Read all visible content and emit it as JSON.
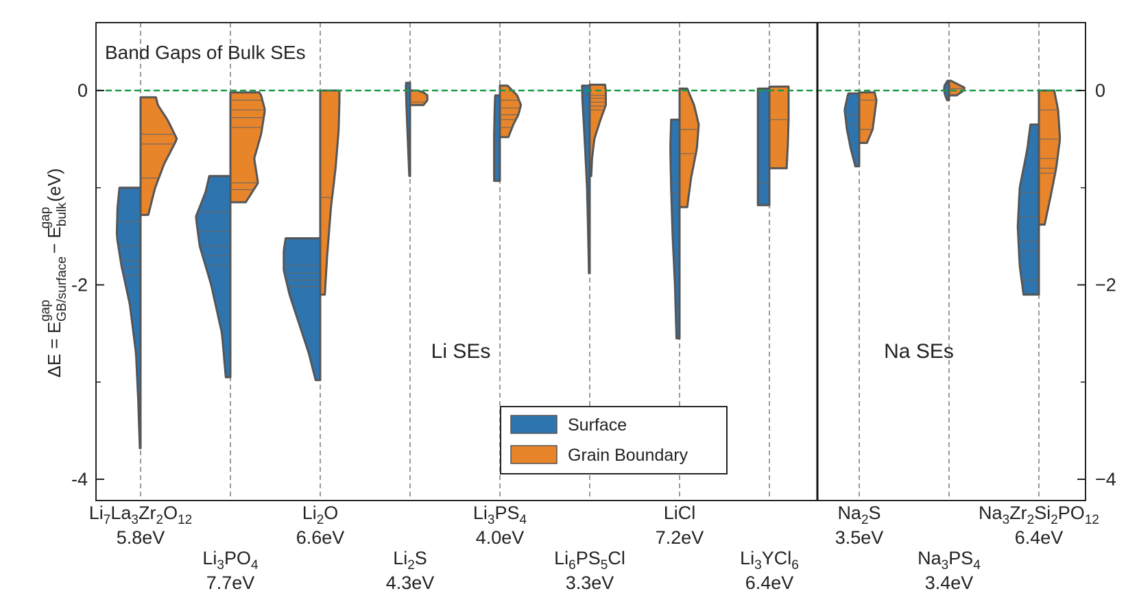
{
  "chart_data": {
    "type": "violin",
    "title": "Band Gaps of Bulk SEs",
    "ylabel": "ΔE = E^gap_GB/surface − E^gap_bulk (eV)",
    "ylabel_parts": {
      "prefix": "ΔE = E",
      "sub1": "GB/surface",
      "sup1": "gap",
      "mid": " − E",
      "sub2": "bulk",
      "sup2": "gap",
      "suffix": "  (eV)"
    },
    "ylim": [
      -4.2,
      0.7
    ],
    "yticks": [
      -4,
      -2,
      0
    ],
    "yticklabels": [
      "−4",
      "−2",
      "0"
    ],
    "yticklabels_left": [
      "-4",
      "-2",
      "0"
    ],
    "reference_line": 0,
    "regions": [
      {
        "label": "Li SEs",
        "from": 0,
        "to": 7
      },
      {
        "label": "Na SEs",
        "from": 8,
        "to": 10
      }
    ],
    "series_colors": {
      "surface": "#2e75b0",
      "grain_boundary": "#e8852a"
    },
    "legend": {
      "placement": "lower-center",
      "entries": [
        "Surface",
        "Grain Boundary"
      ]
    },
    "materials": [
      {
        "formula": [
          [
            "Li",
            ""
          ],
          [
            "7",
            "sub"
          ],
          [
            "La",
            ""
          ],
          [
            "3",
            "sub"
          ],
          [
            "Zr",
            ""
          ],
          [
            "2",
            "sub"
          ],
          [
            "O",
            ""
          ],
          [
            "12",
            "sub"
          ]
        ],
        "bandgap": "5.8eV",
        "surface": {
          "min": -3.68,
          "max": -1.0,
          "density": [
            [
              -3.68,
              0.02
            ],
            [
              -3.2,
              0.06
            ],
            [
              -2.7,
              0.12
            ],
            [
              -2.2,
              0.28
            ],
            [
              -1.8,
              0.5
            ],
            [
              -1.5,
              0.62
            ],
            [
              -1.2,
              0.6
            ],
            [
              -1.0,
              0.55
            ]
          ],
          "lines": [
            -1.35,
            -1.6,
            -1.75,
            -1.82,
            -1.9
          ]
        },
        "gb": {
          "min": -1.28,
          "max": -0.07,
          "density": [
            [
              -1.28,
              0.2
            ],
            [
              -1.0,
              0.38
            ],
            [
              -0.75,
              0.62
            ],
            [
              -0.5,
              0.95
            ],
            [
              -0.3,
              0.7
            ],
            [
              -0.15,
              0.45
            ],
            [
              -0.07,
              0.4
            ]
          ],
          "lines": [
            -0.45,
            -0.55,
            -0.9
          ]
        }
      },
      {
        "formula": [
          [
            "Li",
            ""
          ],
          [
            "3",
            "sub"
          ],
          [
            "PO",
            ""
          ],
          [
            "4",
            "sub"
          ]
        ],
        "bandgap": "7.7eV",
        "surface": {
          "min": -2.95,
          "max": -0.88,
          "density": [
            [
              -2.95,
              0.12
            ],
            [
              -2.5,
              0.22
            ],
            [
              -2.0,
              0.5
            ],
            [
              -1.6,
              0.8
            ],
            [
              -1.3,
              0.9
            ],
            [
              -1.05,
              0.65
            ],
            [
              -0.88,
              0.55
            ]
          ],
          "lines": [
            -1.25,
            -1.45,
            -1.6,
            -1.7,
            -1.8
          ]
        },
        "gb": {
          "min": -1.15,
          "max": -0.02,
          "density": [
            [
              -1.15,
              0.4
            ],
            [
              -0.95,
              0.72
            ],
            [
              -0.7,
              0.62
            ],
            [
              -0.45,
              0.8
            ],
            [
              -0.2,
              0.9
            ],
            [
              -0.05,
              0.8
            ],
            [
              -0.02,
              0.75
            ]
          ],
          "lines": [
            -0.1,
            -0.2,
            -0.28,
            -0.38,
            -0.95,
            -1.02
          ]
        }
      },
      {
        "formula": [
          [
            "Li",
            ""
          ],
          [
            "2",
            "sub"
          ],
          [
            "O",
            ""
          ]
        ],
        "bandgap": "6.6eV",
        "surface": {
          "min": -2.98,
          "max": -1.52,
          "density": [
            [
              -2.98,
              0.12
            ],
            [
              -2.7,
              0.3
            ],
            [
              -2.4,
              0.55
            ],
            [
              -2.1,
              0.8
            ],
            [
              -1.85,
              0.95
            ],
            [
              -1.65,
              0.95
            ],
            [
              -1.52,
              0.9
            ]
          ],
          "lines": [
            -1.8,
            -1.88,
            -1.95,
            -2.02
          ]
        },
        "gb": {
          "min": -2.1,
          "max": 0.0,
          "density": [
            [
              -2.1,
              0.12
            ],
            [
              -1.7,
              0.18
            ],
            [
              -1.2,
              0.28
            ],
            [
              -0.8,
              0.4
            ],
            [
              -0.4,
              0.48
            ],
            [
              -0.1,
              0.5
            ],
            [
              0.0,
              0.5
            ]
          ],
          "lines": [
            -1.1
          ]
        }
      },
      {
        "formula": [
          [
            "Li",
            ""
          ],
          [
            "2",
            "sub"
          ],
          [
            "S",
            ""
          ]
        ],
        "bandgap": "4.3eV",
        "surface": {
          "min": -0.88,
          "max": 0.08,
          "density": [
            [
              -0.88,
              0.02
            ],
            [
              -0.6,
              0.05
            ],
            [
              -0.3,
              0.08
            ],
            [
              -0.1,
              0.1
            ],
            [
              0.05,
              0.11
            ],
            [
              0.08,
              0.1
            ]
          ],
          "lines": []
        },
        "gb": {
          "min": -0.15,
          "max": -0.0,
          "density": [
            [
              -0.15,
              0.35
            ],
            [
              -0.1,
              0.45
            ],
            [
              -0.05,
              0.45
            ],
            [
              -0.02,
              0.35
            ],
            [
              -0.0,
              0.2
            ]
          ],
          "lines": [
            -0.12
          ]
        }
      },
      {
        "formula": [
          [
            "Li",
            ""
          ],
          [
            "3",
            "sub"
          ],
          [
            "PS",
            ""
          ],
          [
            "4",
            "sub"
          ]
        ],
        "bandgap": "4.0eV",
        "surface": {
          "min": -0.93,
          "max": -0.05,
          "density": [
            [
              -0.93,
              0.15
            ],
            [
              -0.7,
              0.15
            ],
            [
              -0.45,
              0.15
            ],
            [
              -0.25,
              0.14
            ],
            [
              -0.1,
              0.13
            ],
            [
              -0.05,
              0.12
            ]
          ],
          "lines": [
            -0.55,
            -0.78
          ]
        },
        "gb": {
          "min": -0.48,
          "max": 0.05,
          "density": [
            [
              -0.48,
              0.22
            ],
            [
              -0.35,
              0.35
            ],
            [
              -0.25,
              0.48
            ],
            [
              -0.15,
              0.55
            ],
            [
              -0.05,
              0.45
            ],
            [
              0.05,
              0.2
            ]
          ],
          "lines": [
            -0.1,
            -0.18,
            -0.25,
            -0.3,
            -0.38
          ]
        }
      },
      {
        "formula": [
          [
            "Li",
            ""
          ],
          [
            "6",
            "sub"
          ],
          [
            "PS",
            ""
          ],
          [
            "5",
            "sub"
          ],
          [
            "Cl",
            ""
          ]
        ],
        "bandgap": "3.3eV",
        "surface": {
          "min": -1.88,
          "max": 0.05,
          "density": [
            [
              -1.88,
              0.02
            ],
            [
              -1.5,
              0.04
            ],
            [
              -1.0,
              0.07
            ],
            [
              -0.6,
              0.12
            ],
            [
              -0.3,
              0.16
            ],
            [
              -0.1,
              0.19
            ],
            [
              0.05,
              0.2
            ]
          ],
          "lines": [
            -0.05,
            -0.18
          ]
        },
        "gb": {
          "min": -0.88,
          "max": 0.06,
          "density": [
            [
              -0.88,
              0.04
            ],
            [
              -0.7,
              0.06
            ],
            [
              -0.5,
              0.12
            ],
            [
              -0.3,
              0.28
            ],
            [
              -0.15,
              0.42
            ],
            [
              0.0,
              0.42
            ],
            [
              0.06,
              0.4
            ]
          ],
          "lines": [
            -0.05,
            -0.08,
            -0.12,
            -0.16,
            -0.2
          ]
        }
      },
      {
        "formula": [
          [
            "LiCl",
            ""
          ]
        ],
        "bandgap": "7.2eV",
        "surface": {
          "min": -2.55,
          "max": -0.3,
          "density": [
            [
              -2.55,
              0.08
            ],
            [
              -2.0,
              0.12
            ],
            [
              -1.5,
              0.18
            ],
            [
              -1.0,
              0.22
            ],
            [
              -0.6,
              0.24
            ],
            [
              -0.3,
              0.22
            ]
          ],
          "lines": [
            -0.95,
            -1.05
          ]
        },
        "gb": {
          "min": -1.2,
          "max": 0.02,
          "density": [
            [
              -1.2,
              0.2
            ],
            [
              -0.9,
              0.3
            ],
            [
              -0.6,
              0.45
            ],
            [
              -0.35,
              0.5
            ],
            [
              -0.15,
              0.38
            ],
            [
              0.02,
              0.2
            ]
          ],
          "lines": [
            -0.4,
            -0.65
          ]
        }
      },
      {
        "formula": [
          [
            "Li",
            ""
          ],
          [
            "3",
            "sub"
          ],
          [
            "YCl",
            ""
          ],
          [
            "6",
            "sub"
          ]
        ],
        "bandgap": "6.4eV",
        "surface": {
          "min": -1.18,
          "max": 0.02,
          "density": [
            [
              -1.18,
              0.3
            ],
            [
              -0.9,
              0.3
            ],
            [
              -0.6,
              0.3
            ],
            [
              -0.3,
              0.3
            ],
            [
              0.02,
              0.3
            ]
          ],
          "lines": [
            -0.95
          ]
        },
        "gb": {
          "min": -0.8,
          "max": 0.04,
          "density": [
            [
              -0.8,
              0.45
            ],
            [
              -0.55,
              0.48
            ],
            [
              -0.3,
              0.5
            ],
            [
              -0.05,
              0.5
            ],
            [
              0.04,
              0.5
            ]
          ],
          "lines": [
            -0.3
          ]
        }
      },
      {
        "formula": [
          [
            "Na",
            ""
          ],
          [
            "2",
            "sub"
          ],
          [
            "S",
            ""
          ]
        ],
        "bandgap": "3.5eV",
        "surface": {
          "min": -0.78,
          "max": -0.03,
          "density": [
            [
              -0.78,
              0.1
            ],
            [
              -0.6,
              0.22
            ],
            [
              -0.4,
              0.32
            ],
            [
              -0.2,
              0.38
            ],
            [
              -0.05,
              0.3
            ],
            [
              -0.03,
              0.28
            ]
          ],
          "lines": [
            -0.25,
            -0.35
          ]
        },
        "gb": {
          "min": -0.54,
          "max": -0.02,
          "density": [
            [
              -0.54,
              0.2
            ],
            [
              -0.4,
              0.35
            ],
            [
              -0.25,
              0.4
            ],
            [
              -0.1,
              0.45
            ],
            [
              -0.02,
              0.4
            ]
          ],
          "lines": [
            -0.1,
            -0.4
          ]
        }
      },
      {
        "formula": [
          [
            "Na",
            ""
          ],
          [
            "3",
            "sub"
          ],
          [
            "PS",
            ""
          ],
          [
            "4",
            "sub"
          ]
        ],
        "bandgap": "3.4eV",
        "surface": {
          "min": -0.1,
          "max": 0.1,
          "density": [
            [
              -0.1,
              0.05
            ],
            [
              -0.05,
              0.1
            ],
            [
              0.0,
              0.13
            ],
            [
              0.05,
              0.12
            ],
            [
              0.1,
              0.04
            ]
          ],
          "lines": []
        },
        "gb": {
          "min": -0.05,
          "max": 0.1,
          "density": [
            [
              -0.05,
              0.2
            ],
            [
              0.0,
              0.38
            ],
            [
              0.03,
              0.4
            ],
            [
              0.06,
              0.25
            ],
            [
              0.1,
              0.05
            ]
          ],
          "lines": [
            0.02
          ]
        }
      },
      {
        "formula": [
          [
            "Na",
            ""
          ],
          [
            "3",
            "sub"
          ],
          [
            "Zr",
            ""
          ],
          [
            "2",
            "sub"
          ],
          [
            "Si",
            ""
          ],
          [
            "2",
            "sub"
          ],
          [
            "PO",
            ""
          ],
          [
            "12",
            "sub"
          ]
        ],
        "bandgap": "6.4eV",
        "surface": {
          "min": -2.1,
          "max": -0.35,
          "density": [
            [
              -2.1,
              0.4
            ],
            [
              -1.8,
              0.5
            ],
            [
              -1.4,
              0.55
            ],
            [
              -1.0,
              0.5
            ],
            [
              -0.6,
              0.3
            ],
            [
              -0.35,
              0.22
            ]
          ],
          "lines": [
            -1.05,
            -1.3,
            -1.55,
            -1.65,
            -1.95
          ]
        },
        "gb": {
          "min": -1.38,
          "max": 0.0,
          "density": [
            [
              -1.38,
              0.15
            ],
            [
              -1.1,
              0.3
            ],
            [
              -0.8,
              0.45
            ],
            [
              -0.5,
              0.55
            ],
            [
              -0.2,
              0.5
            ],
            [
              0.0,
              0.4
            ]
          ],
          "lines": [
            -0.2,
            -0.5,
            -0.7,
            -0.8,
            -0.85
          ]
        }
      }
    ]
  }
}
